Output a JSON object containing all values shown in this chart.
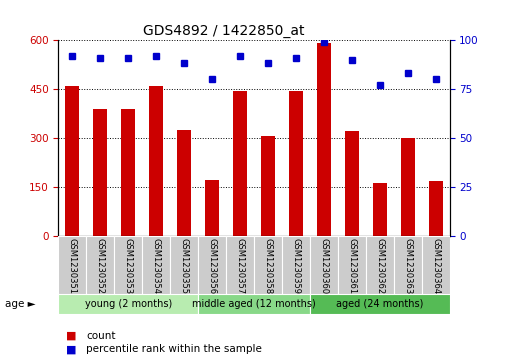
{
  "title": "GDS4892 / 1422850_at",
  "samples": [
    "GSM1230351",
    "GSM1230352",
    "GSM1230353",
    "GSM1230354",
    "GSM1230355",
    "GSM1230356",
    "GSM1230357",
    "GSM1230358",
    "GSM1230359",
    "GSM1230360",
    "GSM1230361",
    "GSM1230362",
    "GSM1230363",
    "GSM1230364"
  ],
  "counts": [
    460,
    390,
    390,
    460,
    325,
    170,
    445,
    305,
    445,
    590,
    320,
    163,
    300,
    168
  ],
  "percentiles": [
    92,
    91,
    91,
    92,
    88,
    80,
    92,
    88,
    91,
    99,
    90,
    77,
    83,
    80
  ],
  "ylim_left": [
    0,
    600
  ],
  "ylim_right": [
    0,
    100
  ],
  "yticks_left": [
    0,
    150,
    300,
    450,
    600
  ],
  "yticks_right": [
    0,
    25,
    50,
    75,
    100
  ],
  "bar_color": "#cc0000",
  "dot_color": "#0000cc",
  "bar_width": 0.5,
  "groups": [
    {
      "label": "young (2 months)",
      "start": 0,
      "end": 5
    },
    {
      "label": "middle aged (12 months)",
      "start": 5,
      "end": 9
    },
    {
      "label": "aged (24 months)",
      "start": 9,
      "end": 14
    }
  ],
  "group_colors": [
    "#b8ecb0",
    "#88d888",
    "#55bb55"
  ],
  "age_label": "age",
  "legend_count_label": "count",
  "legend_pct_label": "percentile rank within the sample",
  "background_color": "#ffffff",
  "tick_color_left": "#cc0000",
  "tick_color_right": "#0000cc",
  "grid_color": "#000000",
  "title_fontsize": 10,
  "tick_fontsize": 7.5,
  "xticklabel_area_color": "#cccccc",
  "sample_fontsize": 6,
  "group_fontsize": 7,
  "legend_fontsize": 7.5
}
